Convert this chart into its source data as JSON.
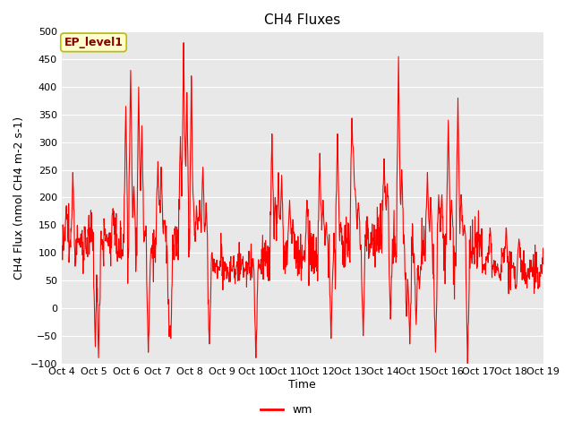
{
  "title": "CH4 Fluxes",
  "xlabel": "Time",
  "ylabel": "CH4 Flux (nmol CH4 m-2 s-1)",
  "ylim": [
    -100,
    500
  ],
  "yticks": [
    -100,
    -50,
    0,
    50,
    100,
    150,
    200,
    250,
    300,
    350,
    400,
    450,
    500
  ],
  "line_color": "#FF0000",
  "line_width": 0.8,
  "bg_color": "#FFFFFF",
  "plot_bg_color": "#E8E8E8",
  "legend_label": "wm",
  "annotation_text": "EP_level1",
  "annotation_bg": "#FFFFCC",
  "annotation_border": "#BBBB00",
  "annotation_text_color": "#880000",
  "title_fontsize": 11,
  "axis_fontsize": 9,
  "tick_fontsize": 8,
  "n_points": 1500,
  "x_start": 4.0,
  "x_end": 19.0,
  "xtick_positions": [
    4,
    5,
    6,
    7,
    8,
    9,
    10,
    11,
    12,
    13,
    14,
    15,
    16,
    17,
    18,
    19
  ],
  "xtick_labels": [
    "Oct 4",
    "Oct 5",
    "Oct 6",
    "Oct 7",
    "Oct 8",
    "Oct 9",
    "Oct 10",
    "Oct 11",
    "Oct 12",
    "Oct 13",
    "Oct 14",
    "Oct 15",
    "Oct 16",
    "Oct 17",
    "Oct 18",
    "Oct 19"
  ]
}
